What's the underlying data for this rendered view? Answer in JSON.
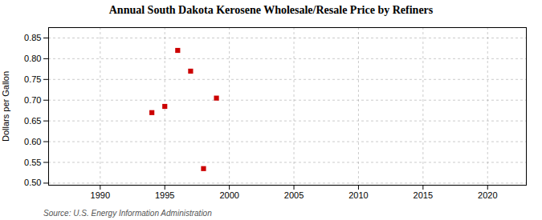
{
  "chart_data": {
    "type": "scatter",
    "title": "Annual South Dakota Kerosene Wholesale/Resale Price by Refiners",
    "ylabel": "Dollars per Gallon",
    "source": "Source: U.S. Energy Information Administration",
    "x": [
      1994,
      1995,
      1996,
      1997,
      1998,
      1999
    ],
    "values": [
      0.67,
      0.685,
      0.82,
      0.77,
      0.535,
      0.705
    ],
    "color": "#cc0000",
    "marker": "square",
    "xlim": [
      1986,
      2023
    ],
    "ylim": [
      0.495,
      0.875
    ],
    "xticks": [
      1990,
      1995,
      2000,
      2005,
      2010,
      2015,
      2020
    ],
    "yticks": [
      {
        "value": 0.5,
        "label": "0.50"
      },
      0.55,
      {
        "value": 0.6,
        "label": "0.60"
      },
      0.65,
      {
        "value": 0.7,
        "label": "0.70"
      },
      0.75,
      {
        "value": 0.8,
        "label": "0.80"
      },
      0.85
    ],
    "grid": true
  }
}
